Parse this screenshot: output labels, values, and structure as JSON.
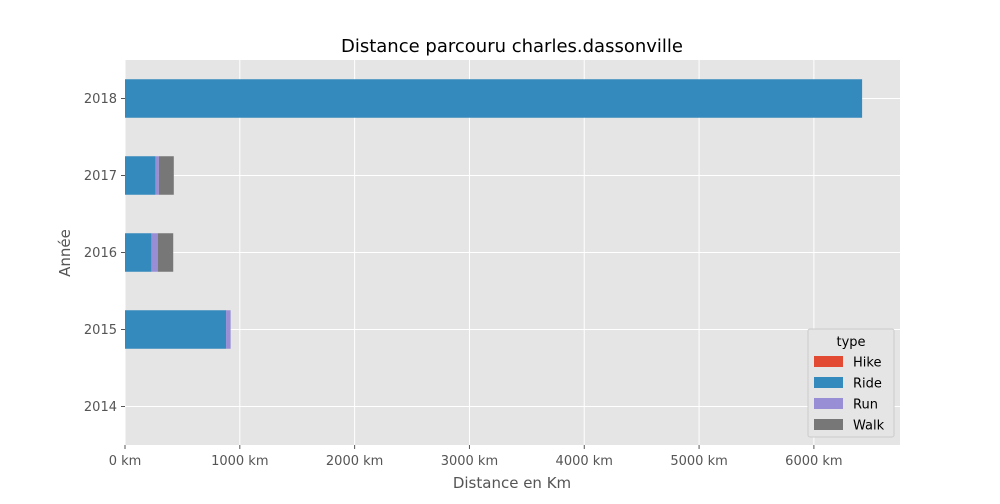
{
  "chart_data": {
    "type": "bar",
    "orientation": "horizontal",
    "stacked": true,
    "title": "Distance parcouru charles.dassonville",
    "xlabel": "Distance en Km",
    "ylabel": "Année",
    "categories": [
      "2014",
      "2015",
      "2016",
      "2017",
      "2018"
    ],
    "series": [
      {
        "name": "Hike",
        "color": "#e24a33",
        "values": [
          0,
          0,
          0,
          0,
          0
        ]
      },
      {
        "name": "Ride",
        "color": "#348abd",
        "values": [
          0,
          880,
          230,
          265,
          6420
        ]
      },
      {
        "name": "Run",
        "color": "#988ed5",
        "values": [
          0,
          40,
          55,
          30,
          0
        ]
      },
      {
        "name": "Walk",
        "color": "#777777",
        "values": [
          0,
          0,
          135,
          130,
          0
        ]
      }
    ],
    "xlim": [
      0,
      6750
    ],
    "xticks": [
      0,
      1000,
      2000,
      3000,
      4000,
      5000,
      6000
    ],
    "xtick_labels": [
      "0 km",
      "1000 km",
      "2000 km",
      "3000 km",
      "4000 km",
      "5000 km",
      "6000 km"
    ],
    "grid": true,
    "legend": {
      "title": "type",
      "position": "bottom-right"
    },
    "background": "#e5e5e5"
  }
}
